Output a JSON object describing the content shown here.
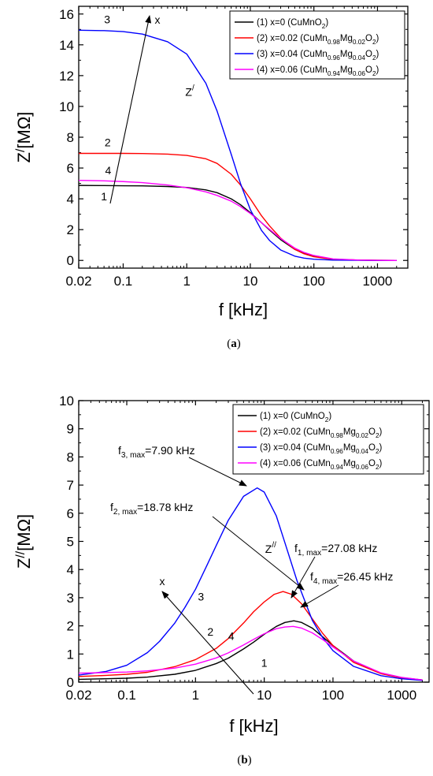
{
  "chart_data": [
    {
      "type": "line",
      "panel_label": "a",
      "xlabel": "f [kHz]",
      "ylabel": "Z/[MΩ]",
      "ylabel_parts": {
        "main": "Z",
        "sup": "/",
        "rest": "[MΩ]"
      },
      "x_scale": "log",
      "xlim": [
        0.02,
        3000
      ],
      "ylim": [
        -0.5,
        16.5
      ],
      "x_ticks": [
        0.02,
        0.1,
        1,
        10,
        100,
        1000
      ],
      "x_tick_labels": [
        "0.02",
        "0.1",
        "1",
        "10",
        "100",
        "1000"
      ],
      "y_ticks": [
        0,
        2,
        4,
        6,
        8,
        10,
        12,
        14,
        16
      ],
      "y_tick_labels": [
        "0",
        "2",
        "4",
        "6",
        "8",
        "10",
        "12",
        "14",
        "16"
      ],
      "grid": false,
      "legend_position": "top-right",
      "inner_label": {
        "main": "Z",
        "sup": "/"
      },
      "arrow_label": "x",
      "series": [
        {
          "name": "(1) x=0 (CuMnO2)",
          "legend_parts": [
            [
              "(1) x=0 (CuMnO",
              ""
            ],
            [
              "2",
              "sub"
            ],
            [
              ")",
              ""
            ]
          ],
          "color": "#000000",
          "curve_label": "1",
          "x": [
            0.02,
            0.05,
            0.1,
            0.2,
            0.5,
            1,
            2,
            3,
            5,
            7,
            10,
            15,
            20,
            30,
            50,
            70,
            100,
            200,
            500,
            1000,
            2000
          ],
          "y": [
            4.87,
            4.86,
            4.85,
            4.84,
            4.8,
            4.74,
            4.58,
            4.4,
            4.0,
            3.62,
            3.1,
            2.45,
            1.98,
            1.35,
            0.72,
            0.46,
            0.27,
            0.08,
            0.02,
            0.01,
            0.0
          ]
        },
        {
          "name": "(2) x=0.02 (CuMn0.98Mg0.02O2)",
          "legend_parts": [
            [
              "(2) x=0.02 (CuMn",
              ""
            ],
            [
              "0.98",
              "sub"
            ],
            [
              "Mg",
              ""
            ],
            [
              "0.02",
              "sub"
            ],
            [
              "O",
              ""
            ],
            [
              "2",
              "sub"
            ],
            [
              ")",
              ""
            ]
          ],
          "color": "#ff0000",
          "curve_label": "2",
          "x": [
            0.02,
            0.05,
            0.1,
            0.2,
            0.5,
            1,
            2,
            3,
            5,
            7,
            10,
            15,
            20,
            30,
            50,
            70,
            100,
            200,
            500,
            1000,
            2000
          ],
          "y": [
            6.95,
            6.95,
            6.95,
            6.94,
            6.9,
            6.82,
            6.6,
            6.3,
            5.6,
            4.9,
            4.0,
            2.9,
            2.25,
            1.45,
            0.72,
            0.43,
            0.24,
            0.07,
            0.02,
            0.01,
            0.0
          ]
        },
        {
          "name": "(3) x=0.04 (CuMn0.96Mg0.04O2)",
          "legend_parts": [
            [
              "(3) x=0.04 (CuMn",
              ""
            ],
            [
              "0.96",
              "sub"
            ],
            [
              "Mg",
              ""
            ],
            [
              "0.04",
              "sub"
            ],
            [
              "O",
              ""
            ],
            [
              "2",
              "sub"
            ],
            [
              ")",
              ""
            ]
          ],
          "color": "#0000ff",
          "curve_label": "3",
          "x": [
            0.02,
            0.05,
            0.1,
            0.2,
            0.5,
            1,
            2,
            3,
            5,
            7,
            10,
            15,
            20,
            30,
            50,
            70,
            100,
            200,
            500,
            1000,
            2000
          ],
          "y": [
            14.95,
            14.92,
            14.86,
            14.7,
            14.2,
            13.4,
            11.5,
            9.7,
            6.9,
            5.0,
            3.3,
            1.95,
            1.3,
            0.68,
            0.28,
            0.15,
            0.08,
            0.02,
            0.01,
            0.0,
            0.0
          ]
        },
        {
          "name": "(4) x=0.06 (CuMn0.94Mg0.06O2)",
          "legend_parts": [
            [
              "(4) x=0.06 (CuMn",
              ""
            ],
            [
              "0.94",
              "sub"
            ],
            [
              "Mg",
              ""
            ],
            [
              "0.06",
              "sub"
            ],
            [
              "O",
              ""
            ],
            [
              "2",
              "sub"
            ],
            [
              ")",
              ""
            ]
          ],
          "color": "#ff00ff",
          "curve_label": "4",
          "x": [
            0.02,
            0.05,
            0.1,
            0.2,
            0.5,
            1,
            2,
            3,
            5,
            7,
            10,
            15,
            20,
            30,
            50,
            70,
            100,
            200,
            500,
            1000,
            2000
          ],
          "y": [
            5.2,
            5.17,
            5.12,
            5.05,
            4.9,
            4.72,
            4.45,
            4.22,
            3.85,
            3.5,
            3.05,
            2.45,
            2.02,
            1.42,
            0.8,
            0.52,
            0.32,
            0.1,
            0.03,
            0.01,
            0.0
          ]
        }
      ]
    },
    {
      "type": "line",
      "panel_label": "b",
      "xlabel": "f [kHz]",
      "ylabel": "Z//[MΩ]",
      "ylabel_parts": {
        "main": "Z",
        "sup": "//",
        "rest": "[MΩ]"
      },
      "x_scale": "log",
      "xlim": [
        0.02,
        2500
      ],
      "ylim": [
        0,
        10
      ],
      "x_ticks": [
        0.02,
        0.1,
        1,
        10,
        100,
        1000
      ],
      "x_tick_labels": [
        "0.02",
        "0.1",
        "1",
        "10",
        "100",
        "1000"
      ],
      "y_ticks": [
        0,
        1,
        2,
        3,
        4,
        5,
        6,
        7,
        8,
        9,
        10
      ],
      "y_tick_labels": [
        "0",
        "1",
        "2",
        "3",
        "4",
        "5",
        "6",
        "7",
        "8",
        "9",
        "10"
      ],
      "grid": false,
      "legend_position": "top-right",
      "inner_label": {
        "main": "Z",
        "sup": "//"
      },
      "arrow_label": "x",
      "annotations": [
        {
          "series": 3,
          "name": "f3,max",
          "label_parts": [
            [
              "f",
              ""
            ],
            [
              "3, max",
              "sub"
            ],
            [
              "=7.90 kHz",
              ""
            ]
          ],
          "f": 7.9,
          "z": 6.9
        },
        {
          "series": 2,
          "name": "f2,max",
          "label_parts": [
            [
              "f",
              ""
            ],
            [
              "2, max",
              "sub"
            ],
            [
              "=18.78 kHz",
              ""
            ]
          ],
          "f": 18.78,
          "z": 3.22
        },
        {
          "series": 1,
          "name": "f1,max",
          "label_parts": [
            [
              "f",
              ""
            ],
            [
              "1, max",
              "sub"
            ],
            [
              "=27.08 kHz",
              ""
            ]
          ],
          "f": 27.08,
          "z": 2.18
        },
        {
          "series": 4,
          "name": "f4,max",
          "label_parts": [
            [
              "f",
              ""
            ],
            [
              "4, max",
              "sub"
            ],
            [
              "=26.45 kHz",
              ""
            ]
          ],
          "f": 26.45,
          "z": 1.98
        }
      ],
      "series": [
        {
          "name": "(1) x=0 (CuMnO2)",
          "legend_parts": [
            [
              "(1) x=0 (CuMnO",
              ""
            ],
            [
              "2",
              "sub"
            ],
            [
              ")",
              ""
            ]
          ],
          "color": "#000000",
          "curve_label": "1",
          "x": [
            0.02,
            0.05,
            0.1,
            0.2,
            0.5,
            1,
            2,
            3,
            5,
            7,
            10,
            15,
            20,
            27,
            35,
            50,
            70,
            100,
            200,
            500,
            1000,
            2000
          ],
          "y": [
            0.1,
            0.12,
            0.14,
            0.18,
            0.28,
            0.42,
            0.66,
            0.85,
            1.18,
            1.42,
            1.7,
            1.98,
            2.12,
            2.18,
            2.12,
            1.92,
            1.62,
            1.3,
            0.75,
            0.32,
            0.16,
            0.08
          ]
        },
        {
          "name": "(2) x=0.02 (CuMn0.98Mg0.02O2)",
          "legend_parts": [
            [
              "(2) x=0.02 (CuMn",
              ""
            ],
            [
              "0.98",
              "sub"
            ],
            [
              "Mg",
              ""
            ],
            [
              "0.02",
              "sub"
            ],
            [
              "O",
              ""
            ],
            [
              "2",
              "sub"
            ],
            [
              ")",
              ""
            ]
          ],
          "color": "#ff0000",
          "curve_label": "2",
          "x": [
            0.02,
            0.05,
            0.1,
            0.2,
            0.5,
            1,
            2,
            3,
            5,
            7,
            10,
            14,
            18.78,
            25,
            35,
            50,
            70,
            100,
            200,
            500,
            1000,
            2000
          ],
          "y": [
            0.2,
            0.24,
            0.28,
            0.35,
            0.55,
            0.8,
            1.2,
            1.55,
            2.1,
            2.5,
            2.85,
            3.12,
            3.22,
            3.12,
            2.78,
            2.25,
            1.75,
            1.3,
            0.7,
            0.3,
            0.15,
            0.07
          ]
        },
        {
          "name": "(3) x=0.04 (CuMn0.96Mg0.04O2)",
          "legend_parts": [
            [
              "(3) x=0.04 (CuMn",
              ""
            ],
            [
              "0.96",
              "sub"
            ],
            [
              "Mg",
              ""
            ],
            [
              "0.04",
              "sub"
            ],
            [
              "O",
              ""
            ],
            [
              "2",
              "sub"
            ],
            [
              ")",
              ""
            ]
          ],
          "color": "#0000ff",
          "curve_label": "3",
          "x": [
            0.02,
            0.05,
            0.1,
            0.2,
            0.3,
            0.5,
            0.7,
            1,
            1.5,
            2,
            3,
            5,
            7.9,
            10,
            15,
            20,
            30,
            50,
            70,
            100,
            200,
            500,
            1000,
            2000
          ],
          "y": [
            0.25,
            0.38,
            0.6,
            1.05,
            1.45,
            2.1,
            2.65,
            3.3,
            4.2,
            4.85,
            5.75,
            6.6,
            6.9,
            6.75,
            5.9,
            4.95,
            3.6,
            2.2,
            1.6,
            1.12,
            0.56,
            0.23,
            0.12,
            0.06
          ]
        },
        {
          "name": "(4) x=0.06 (CuMn0.94Mg0.06O2)",
          "legend_parts": [
            [
              "(4) x=0.06 (CuMn",
              ""
            ],
            [
              "0.94",
              "sub"
            ],
            [
              "Mg",
              ""
            ],
            [
              "0.06",
              "sub"
            ],
            [
              "O",
              ""
            ],
            [
              "2",
              "sub"
            ],
            [
              ")",
              ""
            ]
          ],
          "color": "#ff00ff",
          "curve_label": "4",
          "x": [
            0.02,
            0.05,
            0.1,
            0.2,
            0.5,
            1,
            2,
            3,
            5,
            7,
            10,
            15,
            20,
            26.45,
            35,
            50,
            70,
            100,
            200,
            500,
            1000,
            2000
          ],
          "y": [
            0.32,
            0.34,
            0.36,
            0.4,
            0.5,
            0.64,
            0.86,
            1.04,
            1.32,
            1.52,
            1.72,
            1.9,
            1.96,
            1.98,
            1.92,
            1.75,
            1.52,
            1.25,
            0.75,
            0.33,
            0.17,
            0.08
          ]
        }
      ]
    }
  ]
}
